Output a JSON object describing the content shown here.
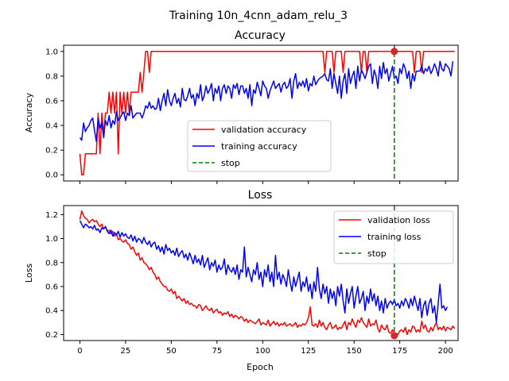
{
  "figure": {
    "suptitle": "Training 10n_4cnn_adam_relu_3",
    "xlabel": "Epoch"
  },
  "colors": {
    "validation": "#ff0000",
    "training": "#0000ff",
    "stop": "#008000",
    "stop_marker": "#d62728"
  },
  "chart_data": [
    {
      "type": "line",
      "title": "Accuracy",
      "xlabel": "",
      "ylabel": "Accuracy",
      "xlim": [
        -8.9,
        206.9
      ],
      "ylim": [
        -0.05,
        1.05
      ],
      "xticks": [
        0,
        25,
        50,
        75,
        100,
        125,
        150,
        175,
        200
      ],
      "yticks": [
        0.0,
        0.2,
        0.4,
        0.6,
        0.8,
        1.0
      ],
      "ytick_labels": [
        "0.0",
        "0.2",
        "0.4",
        "0.6",
        "0.8",
        "1.0"
      ],
      "legend_position": "lower-center",
      "stop_epoch": 172,
      "stop_value": 1.0,
      "series": [
        {
          "name": "validation accuracy",
          "color": "#ff0000",
          "x_start": 0,
          "values": [
            0.17,
            0.0,
            0.0,
            0.17,
            0.17,
            0.17,
            0.17,
            0.17,
            0.17,
            0.17,
            0.5,
            0.17,
            0.5,
            0.33,
            0.5,
            0.5,
            0.67,
            0.5,
            0.67,
            0.5,
            0.67,
            0.17,
            0.67,
            0.5,
            0.67,
            0.5,
            0.67,
            0.5,
            0.67,
            0.67,
            0.67,
            0.67,
            0.67,
            0.83,
            0.67,
            0.83,
            1.0,
            1.0,
            0.83,
            1.0,
            1.0,
            1.0,
            1.0,
            1.0,
            1.0,
            1.0,
            1.0,
            1.0,
            1.0,
            1.0,
            1.0,
            1.0,
            1.0,
            1.0,
            1.0,
            1.0,
            1.0,
            1.0,
            1.0,
            1.0,
            1.0,
            1.0,
            1.0,
            1.0,
            1.0,
            1.0,
            1.0,
            1.0,
            1.0,
            1.0,
            1.0,
            1.0,
            1.0,
            1.0,
            1.0,
            1.0,
            1.0,
            1.0,
            1.0,
            1.0,
            1.0,
            1.0,
            1.0,
            1.0,
            1.0,
            1.0,
            1.0,
            1.0,
            1.0,
            1.0,
            1.0,
            1.0,
            1.0,
            1.0,
            1.0,
            1.0,
            1.0,
            1.0,
            1.0,
            1.0,
            1.0,
            1.0,
            1.0,
            1.0,
            1.0,
            1.0,
            1.0,
            1.0,
            1.0,
            1.0,
            1.0,
            1.0,
            1.0,
            1.0,
            1.0,
            1.0,
            1.0,
            1.0,
            1.0,
            1.0,
            1.0,
            1.0,
            1.0,
            1.0,
            1.0,
            1.0,
            1.0,
            1.0,
            1.0,
            1.0,
            1.0,
            1.0,
            1.0,
            1.0,
            0.83,
            1.0,
            1.0,
            1.0,
            1.0,
            0.83,
            1.0,
            1.0,
            1.0,
            1.0,
            0.83,
            1.0,
            1.0,
            1.0,
            1.0,
            1.0,
            1.0,
            1.0,
            1.0,
            1.0,
            0.83,
            1.0,
            1.0,
            0.83,
            1.0,
            1.0,
            1.0,
            1.0,
            1.0,
            1.0,
            1.0,
            1.0,
            1.0,
            1.0,
            1.0,
            1.0,
            1.0,
            1.0,
            1.0,
            1.0,
            1.0,
            1.0,
            1.0,
            1.0,
            1.0,
            1.0,
            1.0,
            1.0,
            1.0,
            0.83,
            1.0,
            1.0,
            1.0,
            0.83,
            1.0,
            1.0,
            1.0,
            1.0,
            1.0,
            1.0,
            1.0,
            1.0,
            1.0,
            1.0,
            1.0,
            1.0,
            1.0,
            1.0,
            1.0,
            1.0,
            1.0,
            1.0
          ]
        },
        {
          "name": "training accuracy",
          "color": "#0000ff",
          "x_start": 0,
          "values": [
            0.3,
            0.28,
            0.42,
            0.35,
            0.38,
            0.4,
            0.44,
            0.46,
            0.36,
            0.27,
            0.46,
            0.38,
            0.42,
            0.3,
            0.44,
            0.4,
            0.48,
            0.38,
            0.44,
            0.41,
            0.51,
            0.44,
            0.46,
            0.49,
            0.51,
            0.44,
            0.5,
            0.48,
            0.56,
            0.46,
            0.48,
            0.5,
            0.5,
            0.5,
            0.46,
            0.5,
            0.56,
            0.54,
            0.59,
            0.54,
            0.56,
            0.53,
            0.54,
            0.62,
            0.52,
            0.6,
            0.66,
            0.56,
            0.69,
            0.6,
            0.56,
            0.62,
            0.66,
            0.58,
            0.62,
            0.55,
            0.7,
            0.61,
            0.6,
            0.64,
            0.7,
            0.62,
            0.65,
            0.56,
            0.66,
            0.62,
            0.73,
            0.6,
            0.64,
            0.72,
            0.66,
            0.69,
            0.74,
            0.6,
            0.7,
            0.66,
            0.72,
            0.6,
            0.7,
            0.73,
            0.66,
            0.72,
            0.7,
            0.62,
            0.73,
            0.7,
            0.74,
            0.65,
            0.72,
            0.72,
            0.66,
            0.7,
            0.62,
            0.73,
            0.56,
            0.69,
            0.66,
            0.75,
            0.7,
            0.64,
            0.76,
            0.72,
            0.7,
            0.62,
            0.68,
            0.72,
            0.76,
            0.7,
            0.72,
            0.74,
            0.67,
            0.73,
            0.75,
            0.7,
            0.72,
            0.78,
            0.62,
            0.76,
            0.82,
            0.7,
            0.75,
            0.72,
            0.76,
            0.71,
            0.78,
            0.68,
            0.74,
            0.72,
            0.8,
            0.73,
            0.76,
            0.78,
            0.79,
            0.8,
            0.82,
            0.77,
            0.76,
            0.86,
            0.7,
            0.82,
            0.74,
            0.66,
            0.8,
            0.62,
            0.76,
            0.82,
            0.66,
            0.86,
            0.74,
            0.8,
            0.84,
            0.7,
            0.88,
            0.76,
            0.85,
            0.82,
            0.78,
            0.83,
            0.88,
            0.9,
            0.74,
            0.85,
            0.8,
            0.7,
            0.88,
            0.78,
            0.91,
            0.82,
            0.86,
            0.76,
            0.82,
            0.88,
            0.78,
            0.8,
            0.74,
            0.86,
            0.82,
            0.9,
            0.86,
            0.78,
            0.84,
            0.7,
            0.82,
            0.76,
            0.84,
            0.84,
            0.84,
            0.88,
            0.82,
            0.86,
            0.84,
            0.88,
            0.82,
            0.85,
            0.9,
            0.86,
            0.8,
            0.92,
            0.86,
            0.84,
            0.9,
            0.88,
            0.86,
            0.8,
            0.92
          ]
        }
      ]
    },
    {
      "type": "line",
      "title": "Loss",
      "xlabel": "Epoch",
      "ylabel": "Loss",
      "xlim": [
        -8.9,
        206.9
      ],
      "ylim": [
        0.15,
        1.275
      ],
      "xticks": [
        0,
        25,
        50,
        75,
        100,
        125,
        150,
        175,
        200
      ],
      "yticks": [
        0.2,
        0.4,
        0.6,
        0.8,
        1.0,
        1.2
      ],
      "ytick_labels": [
        "0.2",
        "0.4",
        "0.6",
        "0.8",
        "1.0",
        "1.2"
      ],
      "legend_position": "upper-right",
      "stop_epoch": 172,
      "stop_value": 0.19,
      "series": [
        {
          "name": "validation loss",
          "color": "#ff0000",
          "x_start": 0,
          "values": [
            1.16,
            1.23,
            1.19,
            1.17,
            1.16,
            1.13,
            1.15,
            1.16,
            1.14,
            1.15,
            1.12,
            1.1,
            1.12,
            1.08,
            1.1,
            1.06,
            1.07,
            1.04,
            1.06,
            1.02,
            1.04,
            0.99,
            1.0,
            0.98,
            0.97,
            0.99,
            0.96,
            0.95,
            0.91,
            0.93,
            0.89,
            0.86,
            0.88,
            0.82,
            0.84,
            0.8,
            0.79,
            0.77,
            0.74,
            0.76,
            0.72,
            0.7,
            0.66,
            0.68,
            0.64,
            0.62,
            0.6,
            0.6,
            0.57,
            0.56,
            0.58,
            0.54,
            0.56,
            0.5,
            0.52,
            0.5,
            0.48,
            0.5,
            0.46,
            0.48,
            0.45,
            0.46,
            0.44,
            0.44,
            0.42,
            0.45,
            0.44,
            0.4,
            0.42,
            0.44,
            0.41,
            0.4,
            0.42,
            0.38,
            0.4,
            0.41,
            0.38,
            0.39,
            0.36,
            0.38,
            0.37,
            0.39,
            0.35,
            0.37,
            0.34,
            0.36,
            0.35,
            0.33,
            0.35,
            0.34,
            0.31,
            0.33,
            0.3,
            0.32,
            0.31,
            0.3,
            0.29,
            0.31,
            0.33,
            0.28,
            0.3,
            0.29,
            0.28,
            0.32,
            0.27,
            0.29,
            0.31,
            0.28,
            0.3,
            0.27,
            0.29,
            0.28,
            0.3,
            0.27,
            0.28,
            0.29,
            0.27,
            0.28,
            0.3,
            0.26,
            0.28,
            0.27,
            0.29,
            0.28,
            0.3,
            0.34,
            0.43,
            0.28,
            0.27,
            0.29,
            0.26,
            0.32,
            0.27,
            0.3,
            0.26,
            0.24,
            0.28,
            0.3,
            0.25,
            0.26,
            0.28,
            0.24,
            0.26,
            0.25,
            0.28,
            0.31,
            0.24,
            0.3,
            0.28,
            0.33,
            0.29,
            0.26,
            0.32,
            0.3,
            0.34,
            0.3,
            0.28,
            0.26,
            0.33,
            0.27,
            0.29,
            0.28,
            0.32,
            0.25,
            0.22,
            0.28,
            0.25,
            0.24,
            0.28,
            0.22,
            0.21,
            0.24,
            0.19,
            0.21,
            0.2,
            0.23,
            0.24,
            0.22,
            0.26,
            0.2,
            0.24,
            0.22,
            0.27,
            0.26,
            0.22,
            0.24,
            0.22,
            0.31,
            0.25,
            0.28,
            0.23,
            0.22,
            0.26,
            0.23,
            0.27,
            0.3,
            0.24,
            0.26,
            0.24,
            0.27,
            0.23,
            0.26,
            0.25,
            0.24,
            0.27,
            0.25
          ]
        },
        {
          "name": "training loss",
          "color": "#0000ff",
          "x_start": 0,
          "values": [
            1.15,
            1.12,
            1.09,
            1.12,
            1.11,
            1.09,
            1.1,
            1.08,
            1.11,
            1.07,
            1.08,
            1.05,
            1.09,
            1.08,
            1.1,
            1.06,
            1.04,
            1.07,
            1.02,
            1.05,
            1.03,
            1.06,
            1.01,
            1.05,
            1.02,
            1.04,
            1.01,
            1.0,
            1.03,
            0.98,
            1.02,
            0.97,
            1.0,
            0.99,
            0.96,
            1.01,
            0.97,
            0.95,
            0.98,
            0.93,
            0.96,
            0.97,
            0.91,
            0.94,
            0.89,
            0.93,
            0.87,
            0.95,
            0.9,
            0.92,
            0.88,
            0.9,
            0.86,
            0.92,
            0.85,
            0.88,
            0.9,
            0.84,
            0.87,
            0.82,
            0.88,
            0.84,
            0.79,
            0.86,
            0.8,
            0.83,
            0.78,
            0.86,
            0.76,
            0.8,
            0.84,
            0.74,
            0.8,
            0.77,
            0.82,
            0.72,
            0.78,
            0.74,
            0.76,
            0.83,
            0.7,
            0.78,
            0.74,
            0.72,
            0.76,
            0.7,
            0.78,
            0.66,
            0.74,
            0.72,
            0.93,
            0.68,
            0.76,
            0.7,
            0.64,
            0.74,
            0.7,
            0.8,
            0.66,
            0.72,
            0.6,
            0.74,
            0.68,
            0.78,
            0.64,
            0.72,
            0.6,
            0.86,
            0.66,
            0.72,
            0.62,
            0.7,
            0.66,
            0.6,
            0.74,
            0.64,
            0.56,
            0.68,
            0.6,
            0.66,
            0.72,
            0.56,
            0.64,
            0.6,
            0.68,
            0.56,
            0.62,
            0.5,
            0.64,
            0.56,
            0.76,
            0.58,
            0.5,
            0.62,
            0.54,
            0.6,
            0.46,
            0.58,
            0.5,
            0.56,
            0.44,
            0.6,
            0.52,
            0.62,
            0.48,
            0.38,
            0.58,
            0.46,
            0.54,
            0.6,
            0.42,
            0.52,
            0.6,
            0.46,
            0.5,
            0.56,
            0.4,
            0.52,
            0.46,
            0.58,
            0.48,
            0.54,
            0.44,
            0.52,
            0.4,
            0.48,
            0.38,
            0.5,
            0.42,
            0.46,
            0.48,
            0.45,
            0.49,
            0.44,
            0.46,
            0.42,
            0.48,
            0.44,
            0.5,
            0.47,
            0.42,
            0.5,
            0.44,
            0.52,
            0.46,
            0.4,
            0.5,
            0.34,
            0.44,
            0.48,
            0.36,
            0.46,
            0.5,
            0.38,
            0.44,
            0.3,
            0.46,
            0.62,
            0.42,
            0.44,
            0.4,
            0.43
          ]
        }
      ]
    }
  ]
}
